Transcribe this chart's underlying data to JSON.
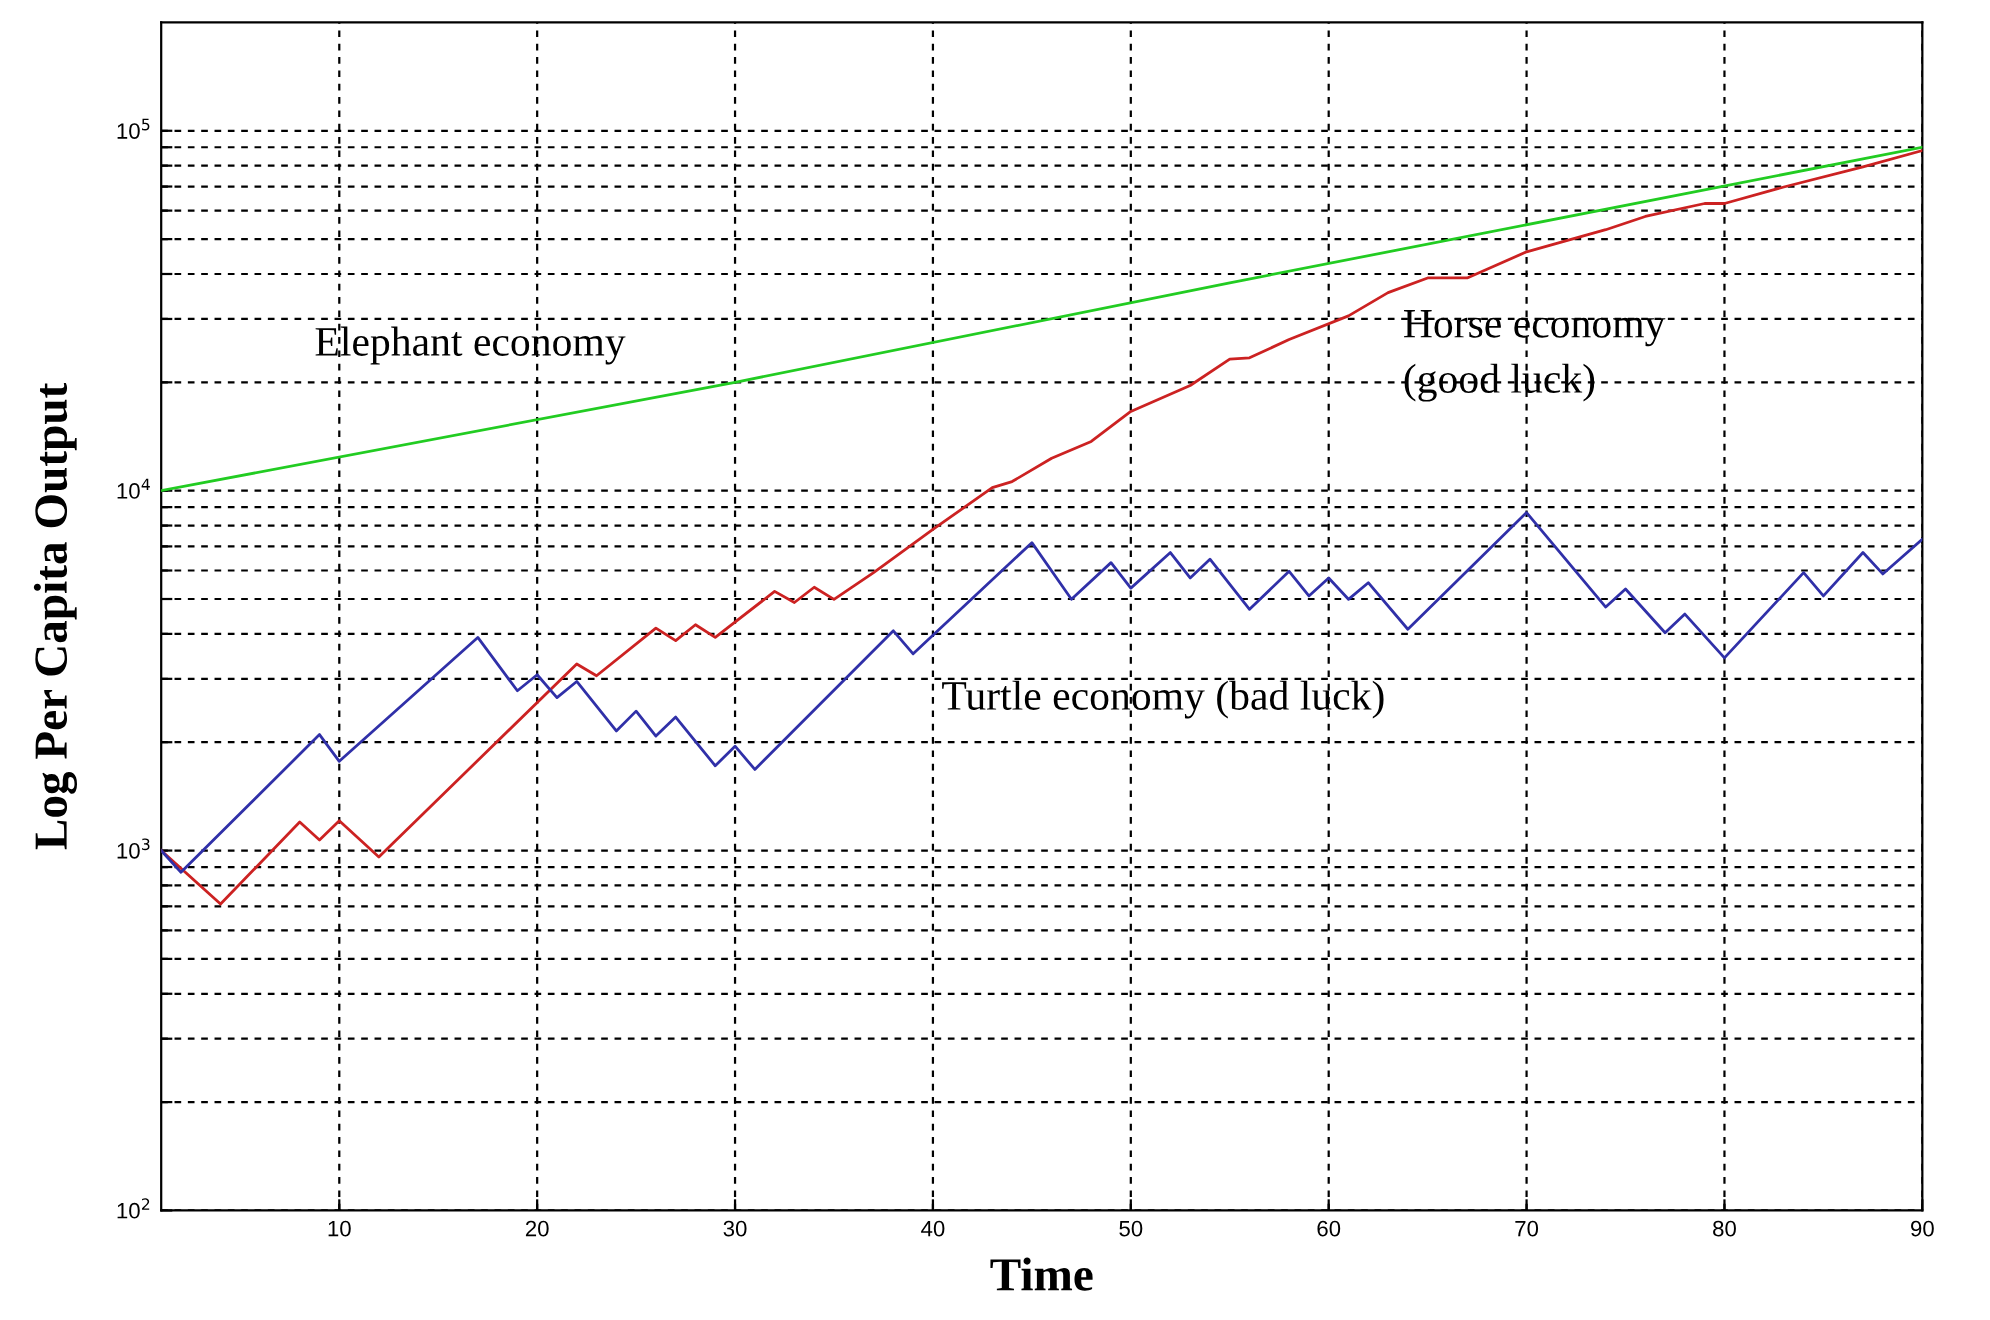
{
  "chart_data": {
    "type": "line",
    "xlabel": "Time",
    "ylabel": "Log Per Capita Output",
    "log": "y",
    "grid": true,
    "marker": "none",
    "line_style": "solid",
    "xlim": [
      1,
      90
    ],
    "xticks": [
      10,
      20,
      30,
      40,
      50,
      60,
      70,
      80,
      90
    ],
    "ylim": [
      100,
      200000
    ],
    "yticks": [
      {
        "value": 100,
        "label": "10$^{2}$"
      },
      {
        "value": 200,
        "label": null
      },
      {
        "value": 300,
        "label": null
      },
      {
        "value": 400,
        "label": null
      },
      {
        "value": 500,
        "label": null
      },
      {
        "value": 600,
        "label": null
      },
      {
        "value": 700,
        "label": null
      },
      {
        "value": 800,
        "label": null
      },
      {
        "value": 900,
        "label": null
      },
      {
        "value": 1000,
        "label": "10$^{3}$"
      },
      {
        "value": 2000,
        "label": null
      },
      {
        "value": 3000,
        "label": null
      },
      {
        "value": 4000,
        "label": null
      },
      {
        "value": 5000,
        "label": null
      },
      {
        "value": 6000,
        "label": null
      },
      {
        "value": 7000,
        "label": null
      },
      {
        "value": 8000,
        "label": null
      },
      {
        "value": 9000,
        "label": null
      },
      {
        "value": 10000,
        "label": "10$^{4}$"
      },
      {
        "value": 20000,
        "label": null
      },
      {
        "value": 30000,
        "label": null
      },
      {
        "value": 40000,
        "label": null
      },
      {
        "value": 50000,
        "label": null
      },
      {
        "value": 60000,
        "label": null
      },
      {
        "value": 70000,
        "label": null
      },
      {
        "value": 80000,
        "label": null
      },
      {
        "value": 90000,
        "label": null
      },
      {
        "value": 100000,
        "label": "10$^{5}$"
      }
    ],
    "series": [
      {
        "name": "Elephant economy",
        "color": "#22cc22",
        "x": [
          1,
          30,
          55,
          90
        ],
        "values": [
          10000,
          20000,
          37800,
          90000
        ]
      },
      {
        "name": "Horse economy\n(good luck)",
        "color": "#cc2222",
        "x": [
          1,
          4,
          8,
          9,
          10,
          12,
          22,
          23,
          26,
          27,
          28,
          29,
          32,
          33,
          34,
          35,
          37,
          40,
          43,
          44,
          46,
          48,
          50,
          53,
          55,
          56,
          58,
          61,
          63,
          65,
          67,
          70,
          74,
          76,
          79,
          80,
          83,
          87,
          90
        ],
        "values": [
          1000,
          710,
          1200,
          1070,
          1210,
          960,
          3300,
          3060,
          4150,
          3830,
          4240,
          3910,
          5250,
          4890,
          5390,
          4990,
          5920,
          7800,
          10200,
          10600,
          12300,
          13700,
          16600,
          19600,
          23200,
          23400,
          26300,
          30600,
          35500,
          39000,
          39000,
          46100,
          53100,
          57800,
          62800,
          62800,
          69800,
          79400,
          88100
        ]
      },
      {
        "name": "Turtle economy (bad luck)",
        "color": "#3030a8",
        "x": [
          1,
          2,
          9,
          10,
          17,
          19,
          20,
          21,
          22,
          24,
          25,
          26,
          27,
          29,
          30,
          31,
          38,
          39,
          45,
          47,
          49,
          50,
          52,
          53,
          54,
          56,
          58,
          59,
          60,
          61,
          62,
          64,
          70,
          74,
          75,
          77,
          78,
          80,
          84,
          85,
          87,
          88,
          90
        ],
        "values": [
          1000,
          870,
          2100,
          1770,
          3910,
          2780,
          3080,
          2660,
          2950,
          2150,
          2440,
          2080,
          2350,
          1720,
          1950,
          1680,
          4080,
          3520,
          7170,
          4990,
          6310,
          5360,
          6730,
          5720,
          6450,
          4680,
          5970,
          5100,
          5720,
          4990,
          5550,
          4120,
          8690,
          4750,
          5330,
          4030,
          4540,
          3430,
          5920,
          5100,
          6730,
          5870,
          7330
        ]
      }
    ]
  }
}
